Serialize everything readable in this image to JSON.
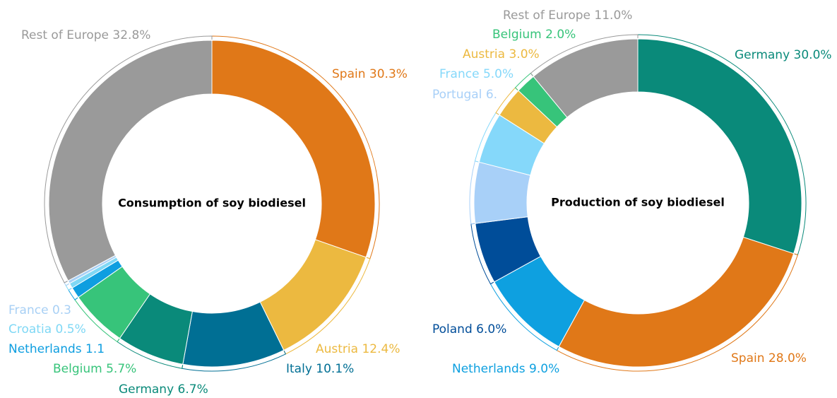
{
  "chart_data": [
    {
      "type": "pie",
      "title": "Consumption of soy biodiesel",
      "categories": [
        "Spain",
        "Austria",
        "Italy",
        "Germany",
        "Belgium",
        "Netherlands",
        "Croatia",
        "France",
        "Rest of Europe"
      ],
      "values": [
        30.3,
        12.4,
        10.1,
        6.7,
        5.7,
        1.1,
        0.5,
        0.3,
        32.8
      ],
      "value_labels": [
        "30.3%",
        "12.4%",
        "10.1%",
        "6.7%",
        "5.7%",
        "1.1",
        "0.5%",
        "0.3",
        "32.8%"
      ],
      "colors": [
        "#e07818",
        "#ecb940",
        "#006f94",
        "#0a8a7a",
        "#37c47a",
        "#0e9ee0",
        "#7fd8f5",
        "#a8d0f5",
        "#9a9a9a"
      ]
    },
    {
      "type": "pie",
      "title": "Production of soy biodiesel",
      "categories": [
        "Germany",
        "Spain",
        "Netherlands",
        "Poland",
        "Portugal",
        "France",
        "Austria",
        "Belgium",
        "Rest of Europe"
      ],
      "values": [
        30.0,
        28.0,
        9.0,
        6.0,
        6.0,
        5.0,
        3.0,
        2.0,
        11.0
      ],
      "value_labels": [
        "30.0%",
        "28.0%",
        "9.0%",
        "6.0%",
        "6.",
        "5.0%",
        "3.0%",
        "2.0%",
        "11.0%"
      ],
      "colors": [
        "#0a8a7a",
        "#e07818",
        "#0ea0e0",
        "#004d99",
        "#a8d0f8",
        "#85d8fa",
        "#ecb940",
        "#37c47a",
        "#9a9a9a"
      ]
    }
  ]
}
